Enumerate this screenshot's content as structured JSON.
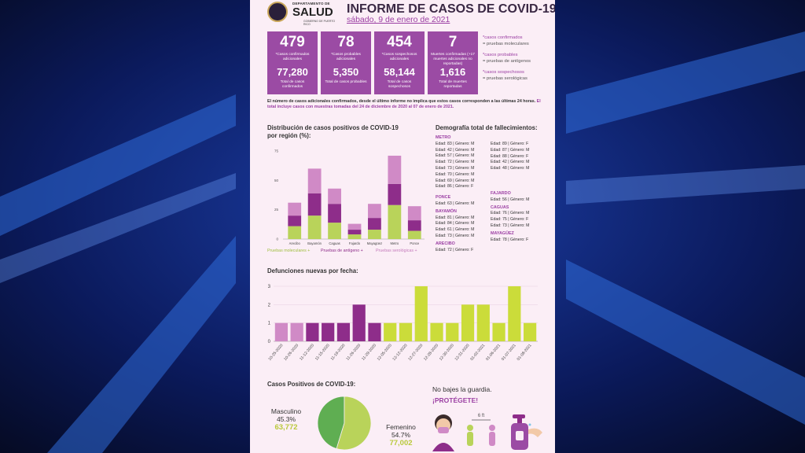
{
  "header": {
    "logo_dept_top": "DEPARTAMENTO DE",
    "logo_dept_main": "SALUD",
    "logo_dept_bottom": "GOBIERNO DE PUERTO RICO",
    "title": "INFORME DE CASOS DE COVID-19",
    "date": "sábado, 9 de enero de 2021"
  },
  "stats": [
    {
      "value": "479",
      "label": "*Casos confirmados adicionales",
      "total": "77,280",
      "total_label": "Total de casos confirmados"
    },
    {
      "value": "78",
      "label": "*Casos probables adicionales",
      "total": "5,350",
      "total_label": "Total de casos probables"
    },
    {
      "value": "454",
      "label": "*Casos sospechosos adicionales",
      "total": "58,144",
      "total_label": "Total de casos sospechosos"
    },
    {
      "value": "7",
      "label": "Muertes confirmadas (+17 muertes adicionales no reportadas)",
      "total": "1,616",
      "total_label": "Total de muertes reportadas"
    }
  ],
  "stats_legend": [
    {
      "a": "*casos confirmados",
      "b": "= pruebas moleculares"
    },
    {
      "a": "*casos probables",
      "b": "= pruebas de antígenos"
    },
    {
      "a": "*casos sospechosos",
      "b": "= pruebas serológicas"
    }
  ],
  "note": {
    "text": "El número de casos adicionales confirmados, desde el último informe no implica que estos casos corresponden a las últimas 24 horas.",
    "highlight": "El total incluye casos con muestras tomadas del 24 de diciembre de 2020 al 07 de enero de 2021."
  },
  "region_section_title_1": "Distribución de casos positivos de COVID-19",
  "region_section_title_2": "por región (%):",
  "deaths_section_title": "Demografía total de fallecimientos:",
  "deaths": {
    "col1": [
      {
        "region": "METRO",
        "rows": [
          "Edad: 83 | Género: M",
          "Edad: 42 | Género: M",
          "Edad: 57 | Género: M",
          "Edad: 72 | Género: M",
          "Edad: 73 | Género: M",
          "Edad: 70 | Género: M",
          "Edad: 69 | Género: M",
          "Edad: 86 | Género: F"
        ]
      },
      {
        "region": "PONCE",
        "rows": [
          "Edad: 63 | Género: M"
        ]
      },
      {
        "region": "BAYAMÓN",
        "rows": [
          "Edad: 81 | Género: M",
          "Edad: 84 | Género: M",
          "Edad: 61 | Género: M",
          "Edad: 73 | Género: M"
        ]
      },
      {
        "region": "ARECIBO",
        "rows": [
          "Edad: 72 | Género: F"
        ]
      }
    ],
    "col2": [
      {
        "region": "",
        "rows": [
          "Edad: 89 | Género: F",
          "Edad: 87 | Género: M",
          "Edad: 88 | Género: F",
          "Edad: 42 | Género: M",
          "Edad: 48 | Género: M"
        ]
      },
      {
        "region": "FAJARDO",
        "rows": [
          "Edad: 56 | Género: M"
        ]
      },
      {
        "region": "CAGUAS",
        "rows": [
          "Edad: 76 | Género: M",
          "Edad: 75 | Género: F",
          "Edad: 73 | Género: M"
        ]
      },
      {
        "region": "MAYAGÜEZ",
        "rows": [
          "Edad: 78 | Género: F"
        ]
      }
    ]
  },
  "region_legend": [
    "Pruebas moleculares +",
    "Pruebas de antígeno +",
    "Pruebas serológicas +"
  ],
  "dates_section_title": "Defunciones nuevas por fecha:",
  "pie_section_title": "Casos Positivos de COVID-19:",
  "protect": {
    "line1": "No bajes la guardia.",
    "line2": "¡PROTÉGETE!",
    "distance": "6 ft"
  },
  "colors": {
    "molecular": "#b9d35a",
    "antigen": "#8e2d8a",
    "serologic": "#d08ac6",
    "purple": "#9b4ba4",
    "lime": "#cbdc3a",
    "pie_m": "#5fae52",
    "pie_f": "#b9d35a"
  },
  "chart_data": [
    {
      "type": "bar",
      "stacked": true,
      "title": "Distribución de casos positivos de COVID-19 por región (%):",
      "categories": [
        "Arecibo",
        "Bayamón",
        "Caguas",
        "Fajardo",
        "Mayagüez",
        "Metro",
        "Ponce"
      ],
      "series": [
        {
          "name": "Pruebas moleculares +",
          "values": [
            11,
            20,
            14,
            4,
            8,
            29,
            7
          ]
        },
        {
          "name": "Pruebas de antígeno +",
          "values": [
            9,
            19,
            16,
            4,
            10,
            18,
            9
          ]
        },
        {
          "name": "Pruebas serológicas +",
          "values": [
            11,
            21,
            13,
            5,
            12,
            24,
            12
          ]
        }
      ],
      "yticks": [
        0,
        25,
        50,
        75
      ],
      "ylim": [
        0,
        75
      ]
    },
    {
      "type": "bar",
      "title": "Defunciones nuevas por fecha:",
      "categories": [
        "10-25-2020",
        "10-26-2020",
        "11-12-2020",
        "11-15-2020",
        "11-19-2020",
        "11-26-2020",
        "11-29-2020",
        "12-05-2020",
        "12-12-2020",
        "12-27-2020",
        "12-28-2020",
        "12-30-2020",
        "12-31-2020",
        "01-02-2021",
        "01-06-2021",
        "01-07-2021",
        "01-08-2021"
      ],
      "values": [
        1,
        1,
        1,
        1,
        1,
        2,
        1,
        1,
        1,
        3,
        1,
        1,
        2,
        2,
        1,
        3,
        1
      ],
      "colors": [
        "#d08ac6",
        "#d08ac6",
        "#8e2d8a",
        "#8e2d8a",
        "#8e2d8a",
        "#8e2d8a",
        "#8e2d8a",
        "#cbdc3a",
        "#cbdc3a",
        "#cbdc3a",
        "#cbdc3a",
        "#cbdc3a",
        "#cbdc3a",
        "#cbdc3a",
        "#cbdc3a",
        "#cbdc3a",
        "#cbdc3a"
      ],
      "yticks": [
        0,
        1,
        2,
        3
      ],
      "ylim": [
        0,
        3
      ]
    },
    {
      "type": "pie",
      "title": "Casos Positivos de COVID-19:",
      "slices": [
        {
          "label": "Masculino",
          "percent": "45.3%",
          "count": "63,772",
          "value": 45.3
        },
        {
          "label": "Femenino",
          "percent": "54.7%",
          "count": "77,002",
          "value": 54.7
        }
      ]
    }
  ]
}
